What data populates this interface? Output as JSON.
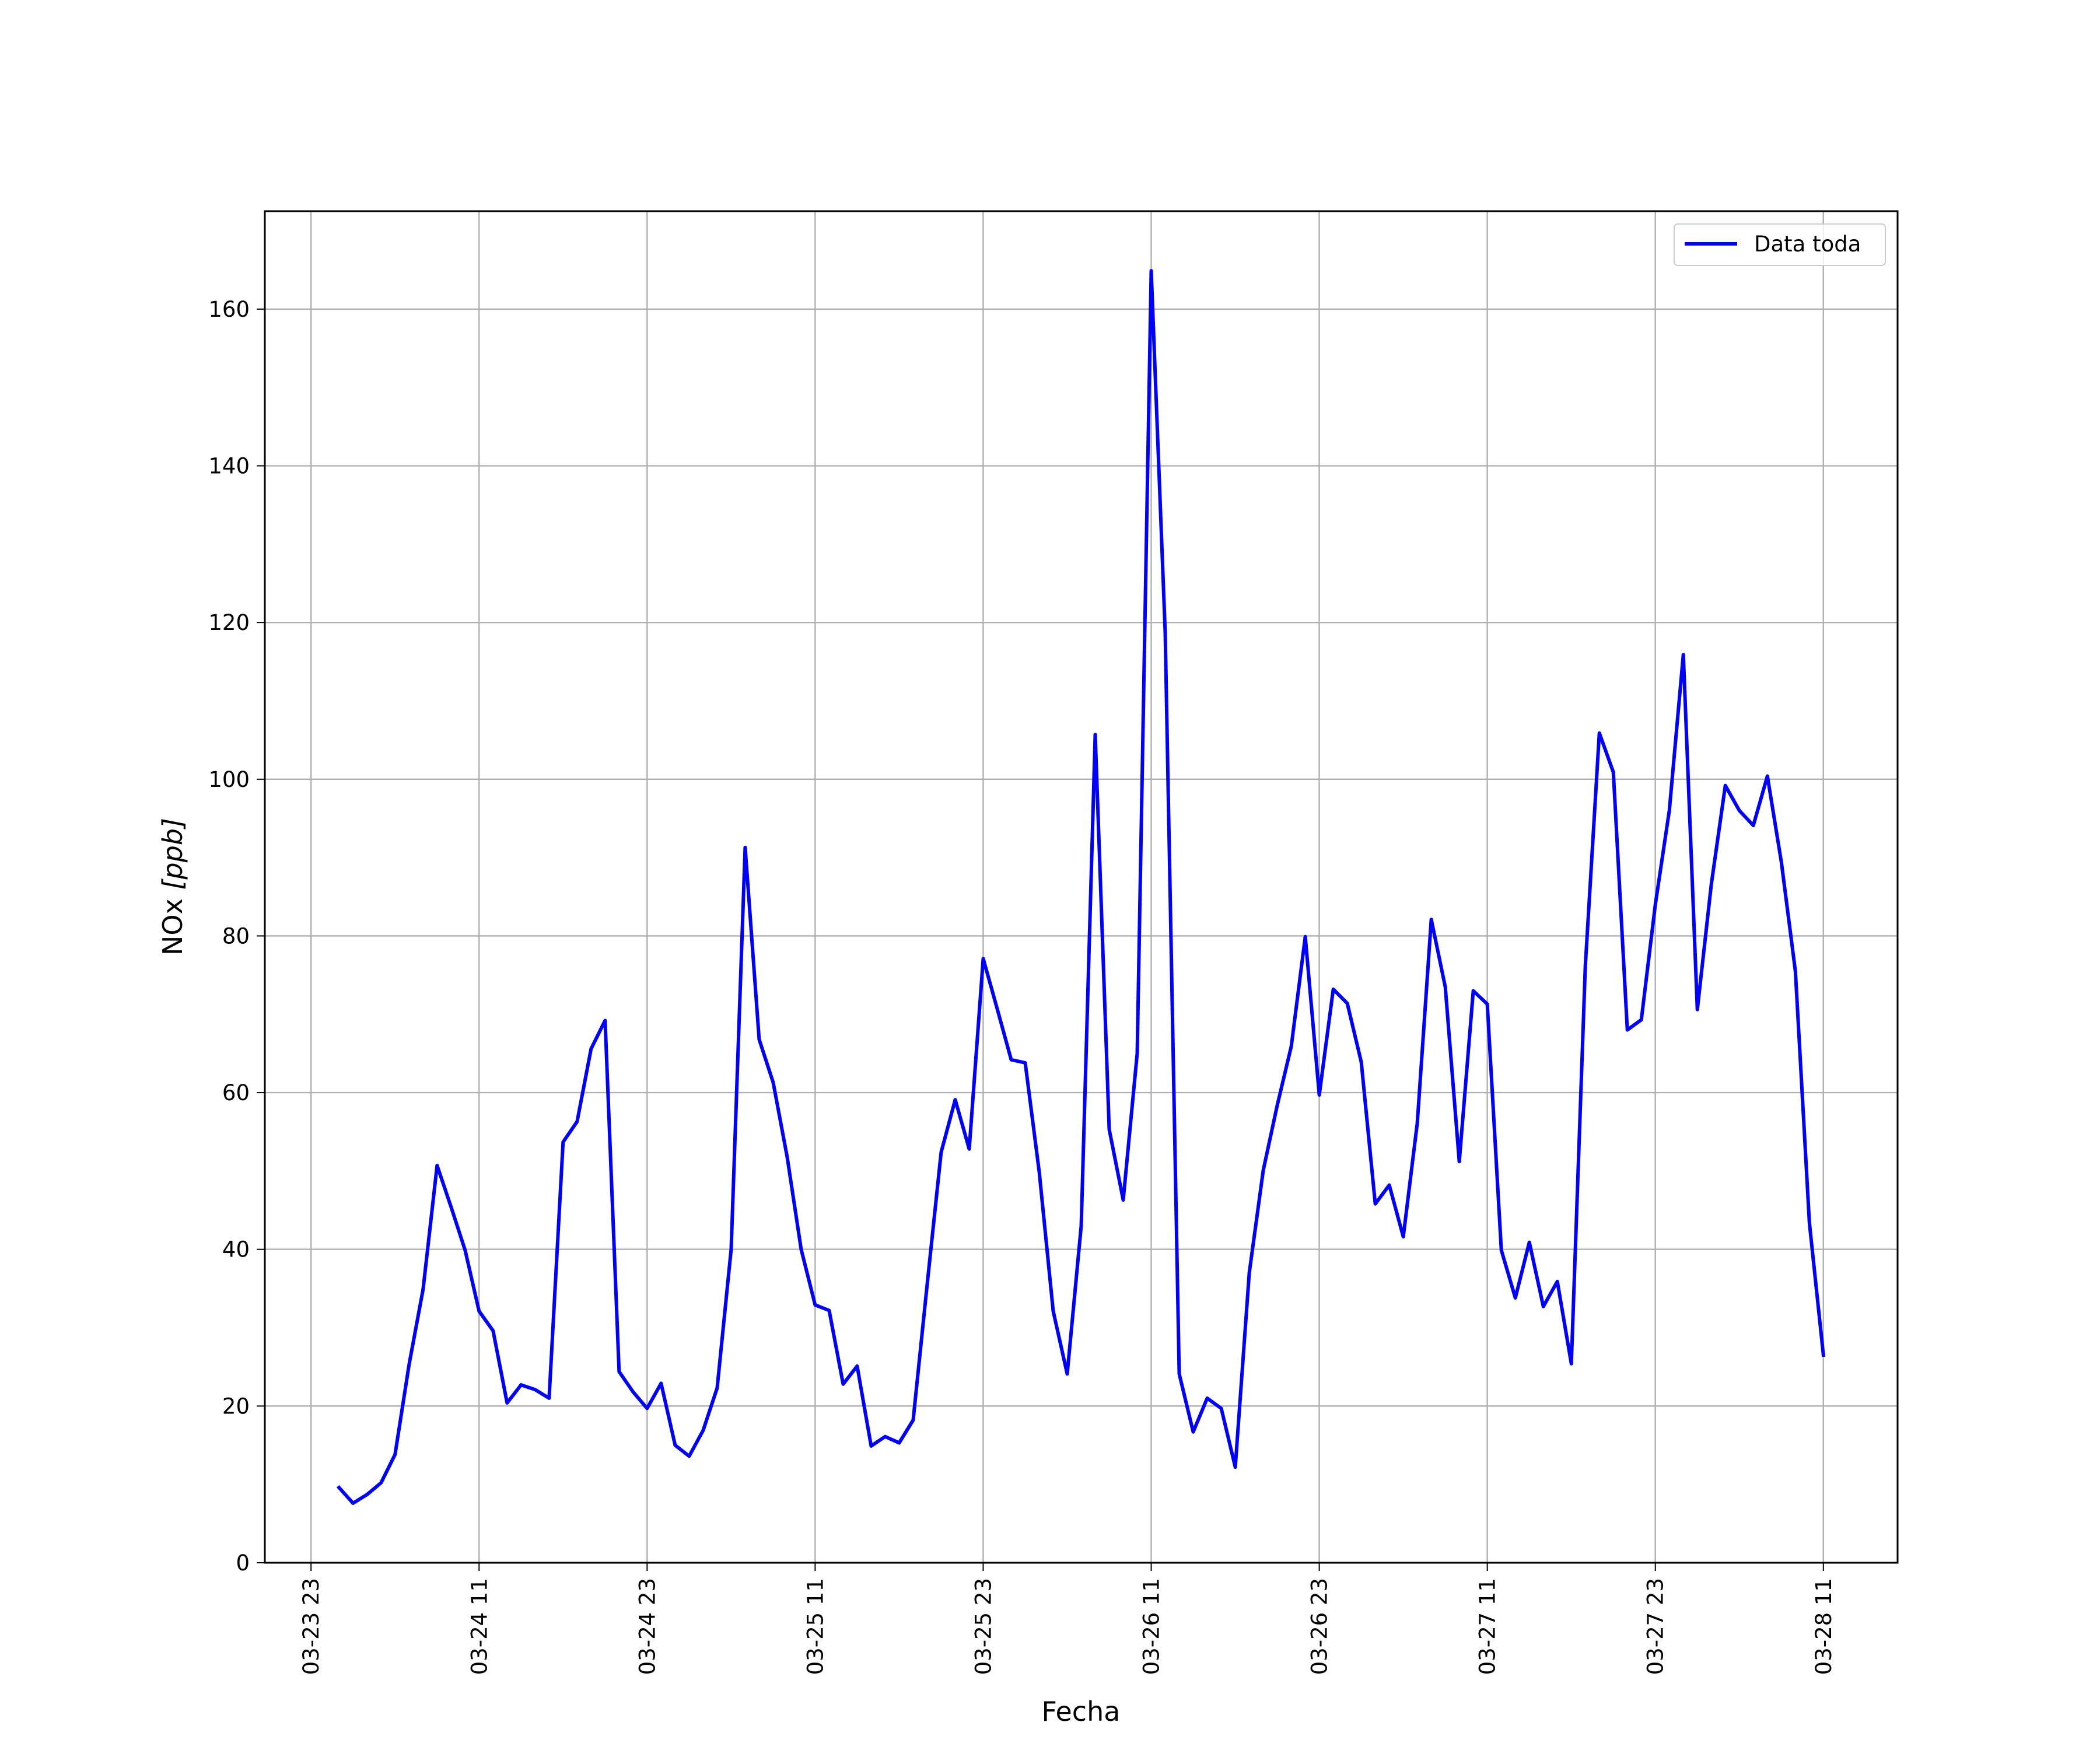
{
  "chart_data": {
    "type": "line",
    "title": "",
    "xlabel": "Fecha",
    "ylabel": "NOx [ppb]",
    "ylabel_text": "NOx ",
    "ylabel_unit": "[ppb]",
    "x_tick_labels": [
      "03-23 23",
      "03-24 11",
      "03-24 23",
      "03-25 11",
      "03-25 23",
      "03-26 11",
      "03-26 23",
      "03-27 11",
      "03-27 23",
      "03-28 11"
    ],
    "y_ticks": [
      0,
      20,
      40,
      60,
      80,
      100,
      120,
      140,
      160
    ],
    "ylim": [
      0,
      172.5
    ],
    "xlim_hours_from_first_tick": [
      -3.3,
      113.3
    ],
    "grid": true,
    "legend_position": "top-right",
    "series": [
      {
        "name": "Data toda",
        "color": "#0000ff",
        "x_start": "03-24 01",
        "x_step_hours": 1,
        "values": [
          9.6,
          7.6,
          8.7,
          10.2,
          13.8,
          25.3,
          34.9,
          50.7,
          45.4,
          39.9,
          32.1,
          29.6,
          20.4,
          22.7,
          22.1,
          21.0,
          53.7,
          56.3,
          65.6,
          69.2,
          24.4,
          21.8,
          19.7,
          22.9,
          15.0,
          13.6,
          16.9,
          22.3,
          40.0,
          91.3,
          66.8,
          61.3,
          51.8,
          40.0,
          32.9,
          32.2,
          22.8,
          25.1,
          14.9,
          16.1,
          15.3,
          18.2,
          35.5,
          52.4,
          59.1,
          52.8,
          77.1,
          70.7,
          64.2,
          63.8,
          49.9,
          32.1,
          24.1,
          43.0,
          105.7,
          55.3,
          46.3,
          65.0,
          164.9,
          118.7,
          24.1,
          16.7,
          21.0,
          19.7,
          12.2,
          37.0,
          50.1,
          58.4,
          65.9,
          79.9,
          59.7,
          73.2,
          71.4,
          63.9,
          45.8,
          48.2,
          41.6,
          56.1,
          82.1,
          73.5,
          51.2,
          73.0,
          71.3,
          39.9,
          33.8,
          40.9,
          32.7,
          35.9,
          25.4,
          76.2,
          105.9,
          100.9,
          68.0,
          69.3,
          84.0,
          96.0,
          115.9,
          70.6,
          86.6,
          99.2,
          96.0,
          94.1,
          100.4,
          89.4,
          75.5,
          43.4,
          26.5
        ]
      }
    ]
  }
}
